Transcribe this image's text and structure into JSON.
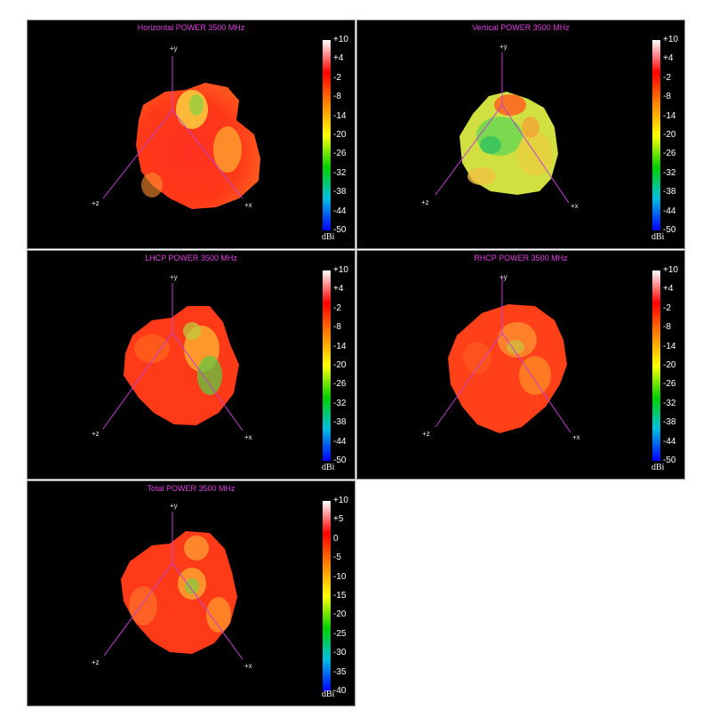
{
  "colors": {
    "axis": "#c040d0",
    "title": "#e040e0",
    "panel_bg": "#000000",
    "scale_stops": [
      "#ffffff",
      "#ff0000",
      "#ff8000",
      "#ffff00",
      "#00d000",
      "#00c0e0",
      "#0000ff"
    ]
  },
  "axes_labels": {
    "y": "+y",
    "z": "+z",
    "x": "+x"
  },
  "panels": [
    {
      "title": "Horizontal POWER 3500  MHz",
      "unit": "dBi",
      "ticks": [
        "+10",
        "+4",
        "-2",
        "-8",
        "-14",
        "-20",
        "-26",
        "-32",
        "-38",
        "-44",
        "-50"
      ],
      "surface": "red-dominant"
    },
    {
      "title": "Vertical POWER 3500  MHz",
      "unit": "dBi",
      "ticks": [
        "+10",
        "+4",
        "-2",
        "-8",
        "-14",
        "-20",
        "-26",
        "-32",
        "-38",
        "-44",
        "-50"
      ],
      "surface": "yellow-green"
    },
    {
      "title": "LHCP POWER 3500  MHz",
      "unit": "dBi",
      "ticks": [
        "+10",
        "+4",
        "-2",
        "-8",
        "-14",
        "-20",
        "-26",
        "-32",
        "-38",
        "-44",
        "-50"
      ],
      "surface": "red-orange with green patch"
    },
    {
      "title": "RHCP POWER 3500  MHz",
      "unit": "dBi",
      "ticks": [
        "+10",
        "+4",
        "-2",
        "-8",
        "-14",
        "-20",
        "-26",
        "-32",
        "-38",
        "-44",
        "-50"
      ],
      "surface": "orange-red"
    },
    {
      "title": "Total POWER 3500  MHz",
      "unit": "dBi",
      "ticks": [
        "+10",
        "+5",
        "0",
        "-5",
        "-10",
        "-15",
        "-20",
        "-25",
        "-30",
        "-35",
        "-40"
      ],
      "surface": "red-dominant"
    }
  ]
}
